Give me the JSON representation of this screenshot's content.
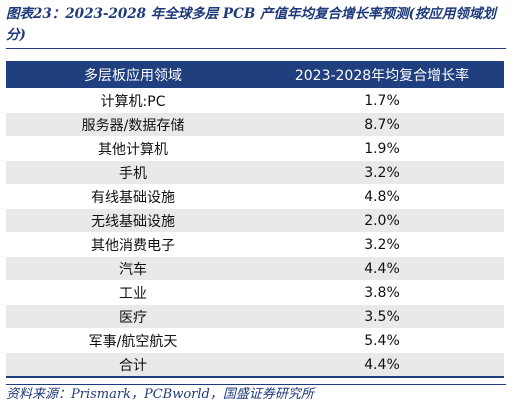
{
  "title": "图表23：2023-2028 年全球多层 PCB 产值年均复合增长率预测(按应用领域划分)",
  "table": {
    "headers": [
      "多层板应用领域",
      "2023-2028年均复合增长率"
    ],
    "rows": [
      [
        "计算机:PC",
        "1.7%"
      ],
      [
        "服务器/数据存储",
        "8.7%"
      ],
      [
        "其他计算机",
        "1.9%"
      ],
      [
        "手机",
        "3.2%"
      ],
      [
        "有线基础设施",
        "4.8%"
      ],
      [
        "无线基础设施",
        "2.0%"
      ],
      [
        "其他消费电子",
        "3.2%"
      ],
      [
        "汽车",
        "4.4%"
      ],
      [
        "工业",
        "3.8%"
      ],
      [
        "医疗",
        "3.5%"
      ],
      [
        "军事/航空航天",
        "5.4%"
      ],
      [
        "合计",
        "4.4%"
      ]
    ]
  },
  "source": "资料来源：Prismark，PCBworld，国盛证券研究所"
}
